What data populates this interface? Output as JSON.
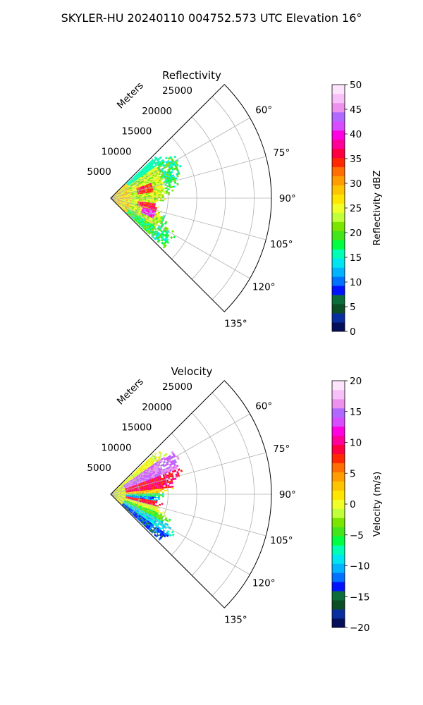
{
  "page_title": "SKYLER-HU  20240110  004752.573 UTC Elevation 16°",
  "chart_data": [
    {
      "type": "heatmap",
      "title": "Reflectivity",
      "radial_label": "Meters",
      "radial_ticks": [
        "5000",
        "10000",
        "15000",
        "20000",
        "25000"
      ],
      "radial_range": [
        0,
        28000
      ],
      "angle_ticks": [
        "60°",
        "75°",
        "90°",
        "105°",
        "120°",
        "135°"
      ],
      "angle_range": [
        45,
        135
      ],
      "grid": true,
      "colorbar": {
        "label": "Reflectivity dBZ",
        "range": [
          0,
          50
        ],
        "ticks": [
          "0",
          "5",
          "10",
          "15",
          "20",
          "25",
          "30",
          "35",
          "40",
          "45",
          "50"
        ],
        "colors": [
          "#05105a",
          "#0a2ea0",
          "#0c4e26",
          "#0b6e3a",
          "#0012ff",
          "#0072ff",
          "#00b4ff",
          "#00e6f0",
          "#00ffb4",
          "#00ff40",
          "#42e61a",
          "#7ae600",
          "#c0ff3a",
          "#f0ff28",
          "#ffe600",
          "#ffc400",
          "#ff9c00",
          "#ff6e00",
          "#ff2800",
          "#ff0040",
          "#ff0098",
          "#ff00e0",
          "#d84cff",
          "#b068ff",
          "#ec92ec",
          "#f8c0f8",
          "#fde4fd"
        ]
      },
      "data_extent_m": 13000,
      "cells": [
        {
          "type": "dense-core",
          "az": [
            47,
            133
          ],
          "r": [
            0,
            3500
          ],
          "values": [
            22,
            32
          ]
        },
        {
          "type": "green-arc",
          "az": [
            55,
            133
          ],
          "r": [
            3500,
            13000
          ],
          "values": [
            14,
            22
          ]
        },
        {
          "type": "yellow-body",
          "az": [
            55,
            122
          ],
          "r": [
            3500,
            9500
          ],
          "values": [
            20,
            27
          ]
        },
        {
          "type": "red-core",
          "az": [
            68,
            82
          ],
          "r": [
            4500,
            7500
          ],
          "values": [
            32,
            38
          ]
        },
        {
          "type": "red-core",
          "az": [
            96,
            105
          ],
          "r": [
            4500,
            8000
          ],
          "values": [
            32,
            38
          ]
        },
        {
          "type": "magenta-core",
          "az": [
            105,
            115
          ],
          "r": [
            5500,
            8200
          ],
          "values": [
            38,
            46
          ]
        }
      ]
    },
    {
      "type": "heatmap",
      "title": "Velocity",
      "radial_label": "Meters",
      "radial_ticks": [
        "5000",
        "10000",
        "15000",
        "20000",
        "25000"
      ],
      "radial_range": [
        0,
        28000
      ],
      "angle_ticks": [
        "60°",
        "75°",
        "90°",
        "105°",
        "120°",
        "135°"
      ],
      "angle_range": [
        45,
        135
      ],
      "grid": true,
      "colorbar": {
        "label": "Velocity (m/s)",
        "range": [
          -20,
          20
        ],
        "ticks": [
          "−20",
          "−15",
          "−10",
          "−5",
          "0",
          "5",
          "10",
          "15",
          "20"
        ],
        "colors": [
          "#05105a",
          "#0a2ea0",
          "#0c4e26",
          "#0b6e3a",
          "#0012ff",
          "#0072ff",
          "#00b4ff",
          "#00e6f0",
          "#00ffb4",
          "#00ff40",
          "#42e61a",
          "#7ae600",
          "#c0ff3a",
          "#f0ff28",
          "#ffe600",
          "#ffc400",
          "#ff9c00",
          "#ff6e00",
          "#ff2800",
          "#ff0040",
          "#ff0098",
          "#ff00e0",
          "#d84cff",
          "#b068ff",
          "#ec92ec",
          "#f8c0f8",
          "#fde4fd"
        ]
      },
      "data_extent_m": 13000,
      "bands": [
        {
          "az": [
            55,
            68
          ],
          "value": 15
        },
        {
          "az": [
            68,
            83
          ],
          "value": 9
        },
        {
          "az": [
            83,
            88
          ],
          "value": 3
        },
        {
          "az": [
            88,
            92
          ],
          "value": -6
        },
        {
          "az": [
            92,
            97
          ],
          "value": -11
        },
        {
          "az": [
            97,
            103
          ],
          "value": 8
        },
        {
          "az": [
            103,
            110
          ],
          "value": 0
        },
        {
          "az": [
            110,
            117
          ],
          "value": -4
        },
        {
          "az": [
            117,
            124
          ],
          "value": -9
        },
        {
          "az": [
            124,
            133
          ],
          "value": -13
        }
      ]
    }
  ]
}
